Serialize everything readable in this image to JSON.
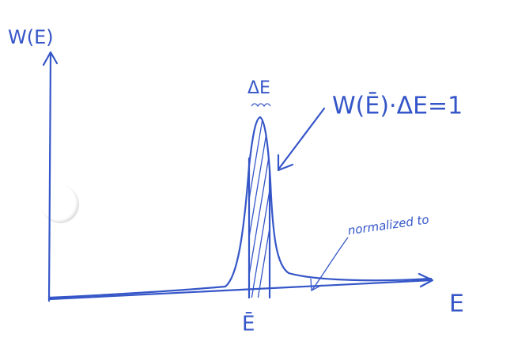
{
  "y_axis_label": "W(E)",
  "x_axis_label": "E",
  "peak_position_label": "Ē",
  "width_label": "ΔE",
  "equation": "W(Ē)·ΔE=1",
  "note": "normalized to"
}
